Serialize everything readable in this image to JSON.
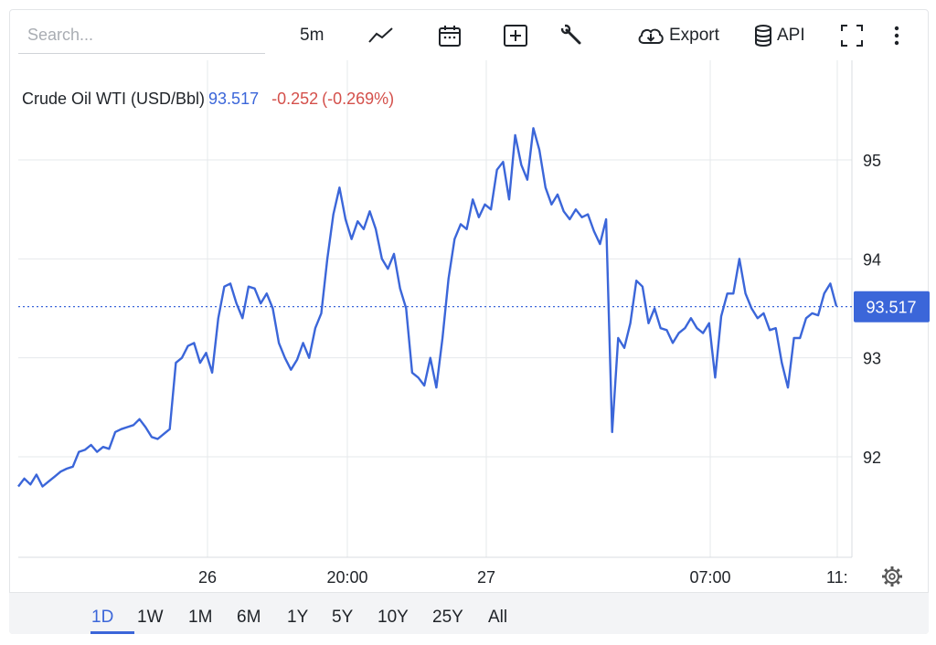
{
  "toolbar": {
    "search_placeholder": "Search...",
    "interval": "5m",
    "export_label": "Export",
    "api_label": "API",
    "icons": [
      "line-style-icon",
      "calendar-icon",
      "plus-box-icon",
      "wrench-icon",
      "cloud-download-icon",
      "database-icon",
      "fullscreen-icon",
      "more-vertical-icon"
    ]
  },
  "legend": {
    "instrument": "Crude Oil WTI (USD/Bbl)",
    "price": "93.517",
    "change": "-0.252",
    "change_pct": "(-0.269%)"
  },
  "price_badge": "93.517",
  "range_buttons": [
    "1D",
    "1W",
    "1M",
    "6M",
    "1Y",
    "5Y",
    "10Y",
    "25Y",
    "All"
  ],
  "active_range": "1D",
  "colors": {
    "line": "#3b66d9",
    "badge": "#3b66d9",
    "negative": "#d4504b",
    "grid": "#e6e8eb"
  },
  "chart_data": {
    "type": "line",
    "title": "Crude Oil WTI (USD/Bbl)",
    "xlabel": "",
    "ylabel": "",
    "y_ticks": [
      92,
      93,
      94,
      95
    ],
    "ylim": [
      91.0,
      95.4
    ],
    "x_tick_labels": [
      "26",
      "20:00",
      "27",
      "07:00",
      "11:"
    ],
    "last_price": 93.517,
    "grid": true,
    "series": [
      {
        "name": "",
        "values": [
          91.7,
          91.78,
          91.72,
          91.82,
          91.7,
          91.75,
          91.8,
          91.85,
          91.88,
          91.9,
          92.05,
          92.07,
          92.12,
          92.05,
          92.1,
          92.08,
          92.25,
          92.28,
          92.3,
          92.32,
          92.38,
          92.3,
          92.2,
          92.18,
          92.23,
          92.28,
          92.95,
          93.0,
          93.12,
          93.15,
          92.95,
          93.05,
          92.85,
          93.4,
          93.72,
          93.75,
          93.55,
          93.4,
          93.72,
          93.7,
          93.55,
          93.65,
          93.5,
          93.15,
          93.0,
          92.88,
          92.98,
          93.15,
          93.0,
          93.3,
          93.45,
          94.0,
          94.45,
          94.72,
          94.4,
          94.2,
          94.38,
          94.3,
          94.48,
          94.3,
          94.0,
          93.9,
          94.05,
          93.7,
          93.5,
          92.85,
          92.8,
          92.72,
          93.0,
          92.7,
          93.2,
          93.8,
          94.2,
          94.35,
          94.3,
          94.6,
          94.42,
          94.55,
          94.5,
          94.9,
          94.98,
          94.6,
          95.25,
          94.95,
          94.8,
          95.32,
          95.1,
          94.72,
          94.55,
          94.65,
          94.48,
          94.4,
          94.5,
          94.42,
          94.45,
          94.28,
          94.15,
          94.4,
          92.25,
          93.2,
          93.1,
          93.35,
          93.78,
          93.72,
          93.35,
          93.5,
          93.3,
          93.28,
          93.15,
          93.25,
          93.3,
          93.4,
          93.3,
          93.25,
          93.35,
          92.8,
          93.42,
          93.65,
          93.65,
          94.0,
          93.65,
          93.5,
          93.4,
          93.45,
          93.28,
          93.3,
          92.95,
          92.7,
          93.2,
          93.2,
          93.4,
          93.45,
          93.43,
          93.65,
          93.75,
          93.52
        ]
      }
    ]
  }
}
